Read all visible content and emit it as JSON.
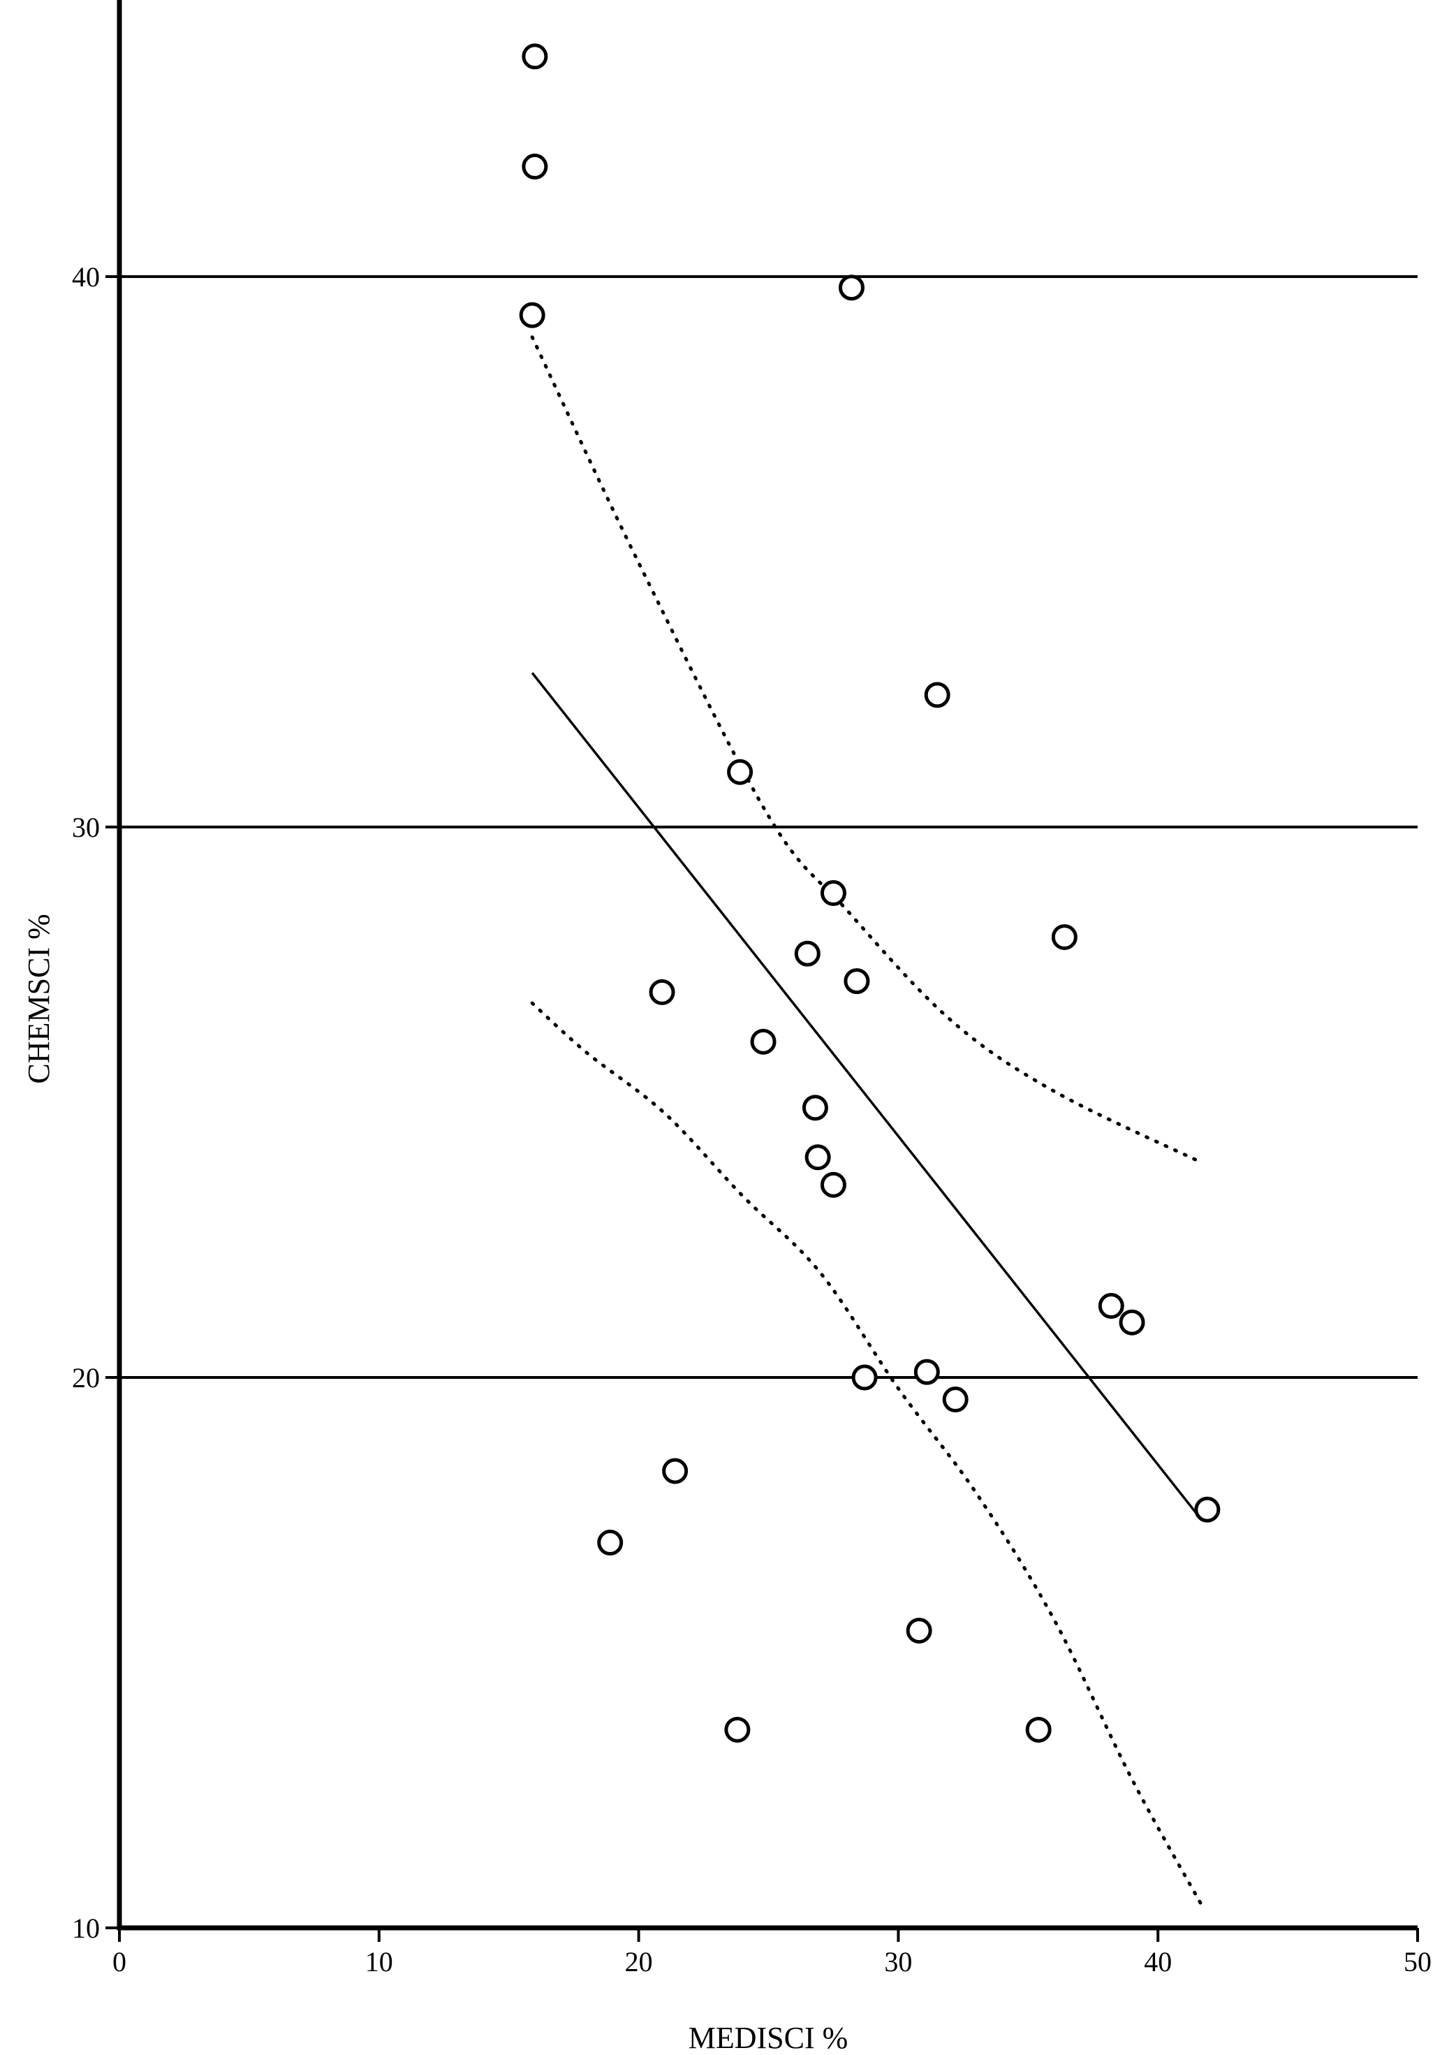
{
  "chart_data": {
    "type": "scatter",
    "title": "",
    "xlabel": "MEDISCI %",
    "ylabel": "CHEMSCI %",
    "xlim": [
      0,
      50
    ],
    "ylim": [
      10,
      45
    ],
    "xticks": [
      0,
      10,
      20,
      30,
      40,
      50
    ],
    "yticks": [
      10,
      20,
      30,
      40
    ],
    "horizontal_reference_lines": [
      20,
      30,
      40
    ],
    "grid": false,
    "legend": "none",
    "marker": "open-circle",
    "points": [
      {
        "x": 16.0,
        "y": 44.0
      },
      {
        "x": 16.0,
        "y": 42.0
      },
      {
        "x": 15.9,
        "y": 39.3
      },
      {
        "x": 28.2,
        "y": 39.8
      },
      {
        "x": 31.5,
        "y": 32.4
      },
      {
        "x": 23.9,
        "y": 31.0
      },
      {
        "x": 27.5,
        "y": 28.8
      },
      {
        "x": 36.4,
        "y": 28.0
      },
      {
        "x": 26.5,
        "y": 27.7
      },
      {
        "x": 28.4,
        "y": 27.2
      },
      {
        "x": 20.9,
        "y": 27.0
      },
      {
        "x": 24.8,
        "y": 26.1
      },
      {
        "x": 26.8,
        "y": 24.9
      },
      {
        "x": 26.9,
        "y": 24.0
      },
      {
        "x": 27.5,
        "y": 23.5
      },
      {
        "x": 38.2,
        "y": 21.3
      },
      {
        "x": 39.0,
        "y": 21.0
      },
      {
        "x": 28.7,
        "y": 20.0
      },
      {
        "x": 31.1,
        "y": 20.1
      },
      {
        "x": 32.2,
        "y": 19.6
      },
      {
        "x": 21.4,
        "y": 18.3
      },
      {
        "x": 41.9,
        "y": 17.6
      },
      {
        "x": 18.9,
        "y": 17.0
      },
      {
        "x": 30.8,
        "y": 15.4
      },
      {
        "x": 23.8,
        "y": 13.6
      },
      {
        "x": 35.4,
        "y": 13.6
      }
    ],
    "regression_line": [
      {
        "x": 15.9,
        "y": 32.8
      },
      {
        "x": 41.7,
        "y": 17.4
      }
    ],
    "upper_confidence_band": [
      {
        "x": 15.9,
        "y": 38.9
      },
      {
        "x": 20.0,
        "y": 34.8
      },
      {
        "x": 25.0,
        "y": 30.2
      },
      {
        "x": 28.0,
        "y": 28.5
      },
      {
        "x": 32.0,
        "y": 26.5
      },
      {
        "x": 36.0,
        "y": 25.2
      },
      {
        "x": 41.7,
        "y": 23.9
      }
    ],
    "lower_confidence_band": [
      {
        "x": 15.9,
        "y": 26.8
      },
      {
        "x": 18.0,
        "y": 25.9
      },
      {
        "x": 21.0,
        "y": 24.8
      },
      {
        "x": 24.0,
        "y": 23.3
      },
      {
        "x": 27.0,
        "y": 21.9
      },
      {
        "x": 30.0,
        "y": 19.8
      },
      {
        "x": 33.0,
        "y": 17.9
      },
      {
        "x": 36.0,
        "y": 15.6
      },
      {
        "x": 39.0,
        "y": 12.7
      },
      {
        "x": 41.7,
        "y": 10.4
      }
    ]
  }
}
